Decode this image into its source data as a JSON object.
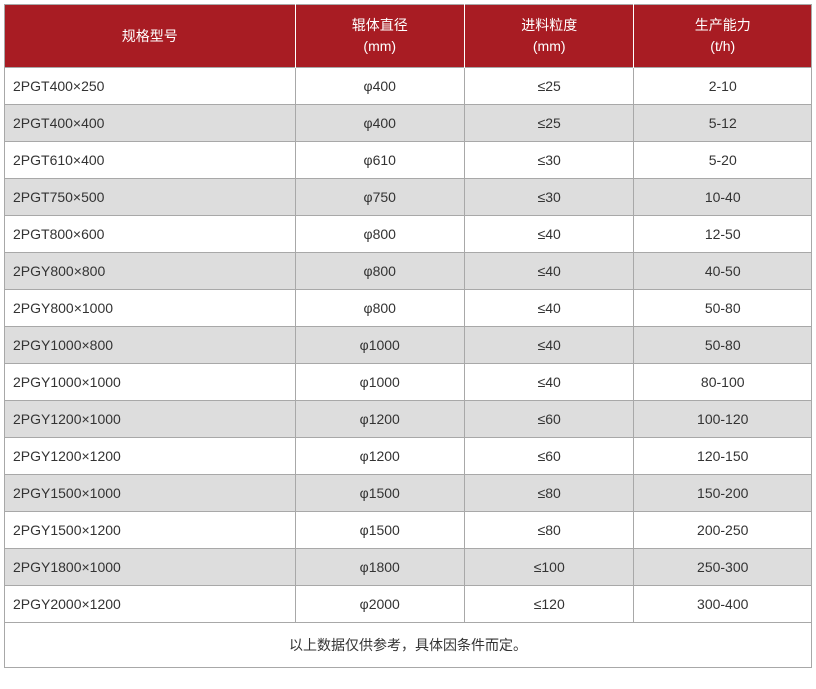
{
  "table": {
    "type": "table",
    "header_bg_color": "#a81c23",
    "header_text_color": "#ffffff",
    "row_odd_bg": "#ffffff",
    "row_even_bg": "#dddddd",
    "border_color": "#a8a8a8",
    "text_color": "#333333",
    "font_size": 14,
    "columns": [
      {
        "label_line1": "规格型号",
        "label_line2": "",
        "width": "36%",
        "align_header": "center",
        "align_body": "left"
      },
      {
        "label_line1": "辊体直径",
        "label_line2": "(mm)",
        "width": "21%",
        "align_header": "center",
        "align_body": "center"
      },
      {
        "label_line1": "进料粒度",
        "label_line2": "(mm)",
        "width": "21%",
        "align_header": "center",
        "align_body": "center"
      },
      {
        "label_line1": "生产能力",
        "label_line2": "(t/h)",
        "width": "22%",
        "align_header": "center",
        "align_body": "center"
      }
    ],
    "rows": [
      [
        "2PGT400×250",
        "φ400",
        "≤25",
        "2-10"
      ],
      [
        "2PGT400×400",
        "φ400",
        "≤25",
        "5-12"
      ],
      [
        "2PGT610×400",
        "φ610",
        "≤30",
        "5-20"
      ],
      [
        "2PGT750×500",
        "φ750",
        "≤30",
        "10-40"
      ],
      [
        "2PGT800×600",
        "φ800",
        "≤40",
        "12-50"
      ],
      [
        "2PGY800×800",
        "φ800",
        "≤40",
        "40-50"
      ],
      [
        "2PGY800×1000",
        "φ800",
        "≤40",
        "50-80"
      ],
      [
        "2PGY1000×800",
        "φ1000",
        "≤40",
        "50-80"
      ],
      [
        "2PGY1000×1000",
        "φ1000",
        "≤40",
        "80-100"
      ],
      [
        "2PGY1200×1000",
        "φ1200",
        "≤60",
        "100-120"
      ],
      [
        "2PGY1200×1200",
        "φ1200",
        "≤60",
        "120-150"
      ],
      [
        "2PGY1500×1000",
        "φ1500",
        "≤80",
        "150-200"
      ],
      [
        "2PGY1500×1200",
        "φ1500",
        "≤80",
        "200-250"
      ],
      [
        "2PGY1800×1000",
        "φ1800",
        "≤100",
        "250-300"
      ],
      [
        "2PGY2000×1200",
        "φ2000",
        "≤120",
        "300-400"
      ]
    ],
    "footer_note": "以上数据仅供参考，具体因条件而定。"
  }
}
